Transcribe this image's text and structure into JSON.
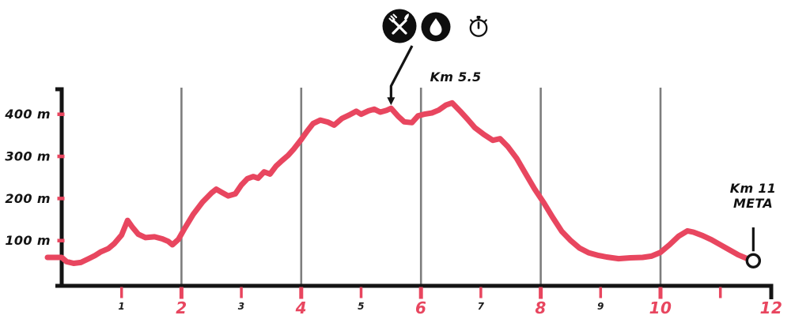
{
  "chart_data": {
    "type": "line",
    "title": "",
    "xlabel": "km",
    "ylabel": "m",
    "xlim": [
      0,
      12
    ],
    "ylim": [
      0,
      450
    ],
    "grid": "vertical-gridlines-at-even-km",
    "legend": "none",
    "gridlines_km": [
      2,
      4,
      6,
      8,
      10
    ],
    "x_ticks": [
      {
        "km": 1,
        "label": "1",
        "major": false
      },
      {
        "km": 2,
        "label": "2",
        "major": true
      },
      {
        "km": 3,
        "label": "3",
        "major": false
      },
      {
        "km": 4,
        "label": "4",
        "major": true
      },
      {
        "km": 5,
        "label": "5",
        "major": false
      },
      {
        "km": 6,
        "label": "6",
        "major": true
      },
      {
        "km": 7,
        "label": "7",
        "major": false
      },
      {
        "km": 8,
        "label": "8",
        "major": true
      },
      {
        "km": 9,
        "label": "9",
        "major": false
      },
      {
        "km": 10,
        "label": "10",
        "major": true
      },
      {
        "km": 11,
        "label": "",
        "major": false
      },
      {
        "km": 12,
        "label": "12",
        "major": true,
        "has_tick": false,
        "at_axis_end": true
      }
    ],
    "y_ticks": [
      {
        "m": 100,
        "label": "100 m"
      },
      {
        "m": 200,
        "label": "200 m"
      },
      {
        "m": 300,
        "label": "300 m"
      },
      {
        "m": 400,
        "label": "400 m"
      }
    ],
    "series": [
      {
        "name": "elevation-profile",
        "unit_x": "km",
        "unit_y": "m",
        "points": [
          [
            0,
            60
          ],
          [
            0.08,
            50
          ],
          [
            0.2,
            46
          ],
          [
            0.32,
            48
          ],
          [
            0.45,
            57
          ],
          [
            0.55,
            64
          ],
          [
            0.65,
            73
          ],
          [
            0.78,
            81
          ],
          [
            0.88,
            93
          ],
          [
            1.0,
            113
          ],
          [
            1.1,
            148
          ],
          [
            1.18,
            132
          ],
          [
            1.28,
            115
          ],
          [
            1.4,
            107
          ],
          [
            1.55,
            109
          ],
          [
            1.68,
            104
          ],
          [
            1.78,
            98
          ],
          [
            1.85,
            90
          ],
          [
            1.95,
            103
          ],
          [
            2.05,
            128
          ],
          [
            2.2,
            163
          ],
          [
            2.35,
            191
          ],
          [
            2.5,
            213
          ],
          [
            2.58,
            222
          ],
          [
            2.68,
            214
          ],
          [
            2.78,
            206
          ],
          [
            2.9,
            211
          ],
          [
            3.0,
            232
          ],
          [
            3.1,
            247
          ],
          [
            3.2,
            252
          ],
          [
            3.28,
            248
          ],
          [
            3.38,
            263
          ],
          [
            3.48,
            258
          ],
          [
            3.58,
            277
          ],
          [
            3.68,
            290
          ],
          [
            3.78,
            302
          ],
          [
            3.88,
            318
          ],
          [
            4.0,
            340
          ],
          [
            4.1,
            360
          ],
          [
            4.2,
            378
          ],
          [
            4.32,
            386
          ],
          [
            4.45,
            381
          ],
          [
            4.55,
            374
          ],
          [
            4.68,
            390
          ],
          [
            4.8,
            398
          ],
          [
            4.92,
            407
          ],
          [
            5.0,
            400
          ],
          [
            5.12,
            408
          ],
          [
            5.22,
            412
          ],
          [
            5.32,
            405
          ],
          [
            5.42,
            409
          ],
          [
            5.5,
            414
          ],
          [
            5.62,
            395
          ],
          [
            5.72,
            382
          ],
          [
            5.85,
            380
          ],
          [
            5.95,
            396
          ],
          [
            6.05,
            400
          ],
          [
            6.18,
            403
          ],
          [
            6.3,
            410
          ],
          [
            6.42,
            422
          ],
          [
            6.52,
            427
          ],
          [
            6.65,
            408
          ],
          [
            6.78,
            388
          ],
          [
            6.9,
            368
          ],
          [
            7.05,
            352
          ],
          [
            7.2,
            338
          ],
          [
            7.32,
            342
          ],
          [
            7.45,
            323
          ],
          [
            7.6,
            295
          ],
          [
            7.75,
            258
          ],
          [
            7.9,
            222
          ],
          [
            8.05,
            190
          ],
          [
            8.2,
            155
          ],
          [
            8.35,
            122
          ],
          [
            8.5,
            100
          ],
          [
            8.65,
            82
          ],
          [
            8.8,
            71
          ],
          [
            8.95,
            65
          ],
          [
            9.1,
            61
          ],
          [
            9.3,
            57
          ],
          [
            9.5,
            59
          ],
          [
            9.7,
            60
          ],
          [
            9.85,
            63
          ],
          [
            10.0,
            72
          ],
          [
            10.15,
            90
          ],
          [
            10.3,
            110
          ],
          [
            10.45,
            123
          ],
          [
            10.55,
            120
          ],
          [
            10.7,
            112
          ],
          [
            10.85,
            102
          ],
          [
            11.0,
            90
          ],
          [
            11.15,
            78
          ],
          [
            11.3,
            66
          ],
          [
            11.45,
            57
          ],
          [
            11.55,
            52
          ]
        ]
      }
    ],
    "colors": {
      "line": "#e8465f",
      "accent": "#e8465f",
      "axis": "#141414",
      "grid": "#7d7d7d",
      "minor_label": "#1c1c1c",
      "label": "#141414",
      "background": "#ffffff"
    }
  },
  "annotations": {
    "peak": {
      "label": "Km 5.5",
      "km": 5.5,
      "elevation_m": 414
    },
    "finish": {
      "label_line1": "Km 11",
      "label_line2": "META",
      "km": 11.55,
      "elevation_m": 52
    }
  },
  "icons": [
    {
      "name": "refreshment-icon",
      "glyph": "crossed-fork-and-knife-in-filled-circle"
    },
    {
      "name": "water-icon",
      "glyph": "water-drop-in-filled-circle"
    },
    {
      "name": "timing-icon",
      "glyph": "stopwatch-outline"
    }
  ]
}
